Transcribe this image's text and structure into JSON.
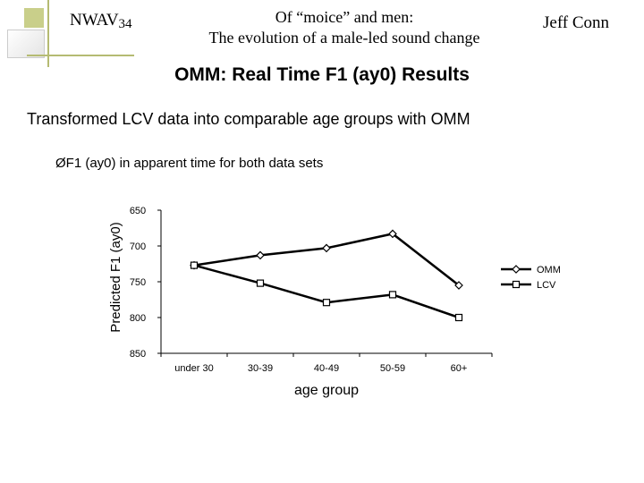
{
  "header": {
    "conference": "NWAV",
    "conference_number": "34",
    "title_line1": "Of “moice” and men:",
    "title_line2": "The evolution of a male-led sound change",
    "author": "Jeff Conn"
  },
  "slide": {
    "heading": "OMM: Real Time F1 (ay0) Results",
    "intro": "Transformed LCV data into comparable age groups with OMM",
    "bullet_marker": "Ø",
    "bullet_text": "F1 (ay0) in apparent time for both data sets"
  },
  "chart_data": {
    "type": "line",
    "title": "",
    "xlabel": "age group",
    "ylabel": "Predicted F1 (ay0)",
    "categories": [
      "under 30",
      "30-39",
      "40-49",
      "50-59",
      "60+"
    ],
    "ylim": [
      650,
      850
    ],
    "y_inverted": true,
    "yticks": [
      650,
      700,
      750,
      800,
      850
    ],
    "grid": false,
    "legend_position": "right",
    "series": [
      {
        "name": "OMM",
        "marker": "diamond",
        "values": [
          727,
          713,
          703,
          683,
          755
        ]
      },
      {
        "name": "LCV",
        "marker": "square",
        "values": [
          727,
          752,
          779,
          768,
          800
        ]
      }
    ]
  }
}
